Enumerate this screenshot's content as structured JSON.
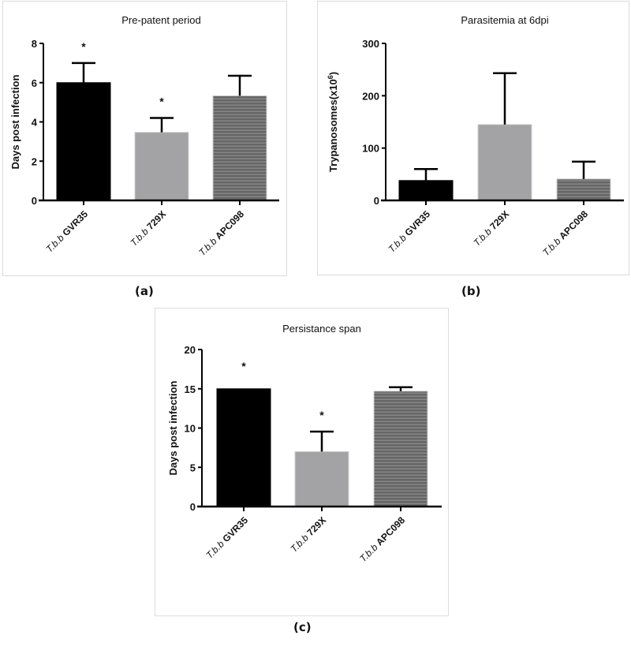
{
  "labels": {
    "a": "(a)",
    "b": "(b)",
    "c": "(c)"
  },
  "chart_data": [
    {
      "id": "a",
      "type": "bar",
      "title": "Pre-patent period",
      "xlabel": "",
      "ylabel": "Days post infection",
      "ylim": [
        0,
        8
      ],
      "yticks": [
        0,
        2,
        4,
        6,
        8
      ],
      "categories": [
        {
          "prefix": "T.b.b",
          "name": "GVR35"
        },
        {
          "prefix": "T.b.b",
          "name": "729X"
        },
        {
          "prefix": "T.b.b",
          "name": "APC098"
        }
      ],
      "values": [
        6.0,
        3.47,
        5.33
      ],
      "error_upper": [
        7.0,
        4.2,
        6.35
      ],
      "significance": [
        "*",
        "*",
        ""
      ],
      "bar_styles": [
        "solid-black",
        "solid-gray",
        "striped-gray"
      ],
      "colors": [
        "#000000",
        "#a3a3a6",
        "#6b6b6b"
      ]
    },
    {
      "id": "b",
      "type": "bar",
      "title": "Parasitemia at 6dpi",
      "xlabel": "",
      "ylabel": "Trypanosomes(x10",
      "ylabel_sup": "6",
      "ylabel_end": ")",
      "ylim": [
        0,
        300
      ],
      "yticks": [
        0,
        100,
        200,
        300
      ],
      "categories": [
        {
          "prefix": "T.b.b",
          "name": "GVR35"
        },
        {
          "prefix": "T.b.b",
          "name": "729X"
        },
        {
          "prefix": "T.b.b",
          "name": "APC098"
        }
      ],
      "values": [
        38,
        145,
        41
      ],
      "error_upper": [
        60,
        243,
        74
      ],
      "significance": [
        "",
        "",
        ""
      ],
      "bar_styles": [
        "solid-black",
        "solid-gray",
        "striped-gray"
      ],
      "colors": [
        "#000000",
        "#a3a3a6",
        "#6b6b6b"
      ]
    },
    {
      "id": "c",
      "type": "bar",
      "title": "Persistance span",
      "xlabel": "",
      "ylabel": "Days post infection",
      "ylim": [
        0,
        20
      ],
      "yticks": [
        0,
        5,
        10,
        15,
        20
      ],
      "categories": [
        {
          "prefix": "T.b.b",
          "name": "GVR35"
        },
        {
          "prefix": "T.b.b",
          "name": "729X"
        },
        {
          "prefix": "T.b.b",
          "name": "APC098"
        }
      ],
      "values": [
        15.0,
        7.0,
        14.7
      ],
      "error_upper": [
        15.0,
        9.55,
        15.2
      ],
      "significance": [
        "*",
        "*",
        ""
      ],
      "bar_styles": [
        "solid-black",
        "solid-gray",
        "striped-gray"
      ],
      "colors": [
        "#000000",
        "#a3a3a6",
        "#6b6b6b"
      ]
    }
  ]
}
